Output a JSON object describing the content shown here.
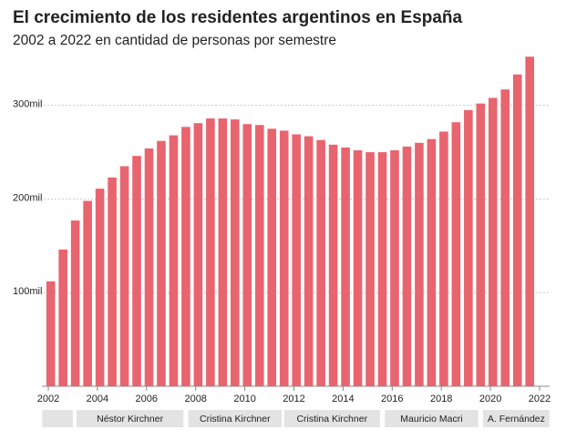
{
  "chart_data": {
    "type": "bar",
    "title": "El crecimiento de los residentes argentinos en España",
    "subtitle": "2002 a 2022 en cantidad de personas por semestre",
    "x": [
      2002.1,
      2002.6,
      2003.1,
      2003.6,
      2004.1,
      2004.6,
      2005.1,
      2005.6,
      2006.1,
      2006.6,
      2007.1,
      2007.6,
      2008.1,
      2008.6,
      2009.1,
      2009.6,
      2010.1,
      2010.6,
      2011.1,
      2011.6,
      2012.1,
      2012.6,
      2013.1,
      2013.6,
      2014.1,
      2014.6,
      2015.1,
      2015.6,
      2016.1,
      2016.6,
      2017.1,
      2017.6,
      2018.1,
      2018.6,
      2019.1,
      2019.6,
      2020.1,
      2020.6,
      2021.1,
      2021.6
    ],
    "values": [
      112000,
      146000,
      177000,
      198000,
      211000,
      223000,
      235000,
      246000,
      254000,
      262000,
      268000,
      277000,
      281000,
      286000,
      286000,
      285000,
      280000,
      279000,
      275000,
      273000,
      269000,
      267000,
      263000,
      258000,
      255000,
      252000,
      250000,
      250000,
      252000,
      256000,
      260000,
      264000,
      272000,
      282000,
      295000,
      302000,
      308000,
      317000,
      333000,
      352000
    ],
    "color": "#e8646e",
    "xlim": [
      2002,
      2022
    ],
    "xticks": [
      2002,
      2004,
      2006,
      2008,
      2010,
      2012,
      2014,
      2016,
      2018,
      2020,
      2022
    ],
    "ylim": [
      0,
      360000
    ],
    "yticks": [
      {
        "value": 100000,
        "label": "100mil"
      },
      {
        "value": 200000,
        "label": "200mil"
      },
      {
        "value": 300000,
        "label": "300mil"
      }
    ],
    "grid": true,
    "periods": [
      {
        "label": null,
        "start": 2001.75,
        "end": 2003.0
      },
      {
        "label": "Néstor Kirchner",
        "start": 2003.15,
        "end": 2007.5
      },
      {
        "label": "Cristina Kirchner",
        "start": 2007.7,
        "end": 2011.5
      },
      {
        "label": "Cristina Kirchner",
        "start": 2011.6,
        "end": 2015.5
      },
      {
        "label": "Mauricio Macri",
        "start": 2015.7,
        "end": 2019.5
      },
      {
        "label": "A. Fernández",
        "start": 2019.7,
        "end": 2022.4
      }
    ]
  }
}
